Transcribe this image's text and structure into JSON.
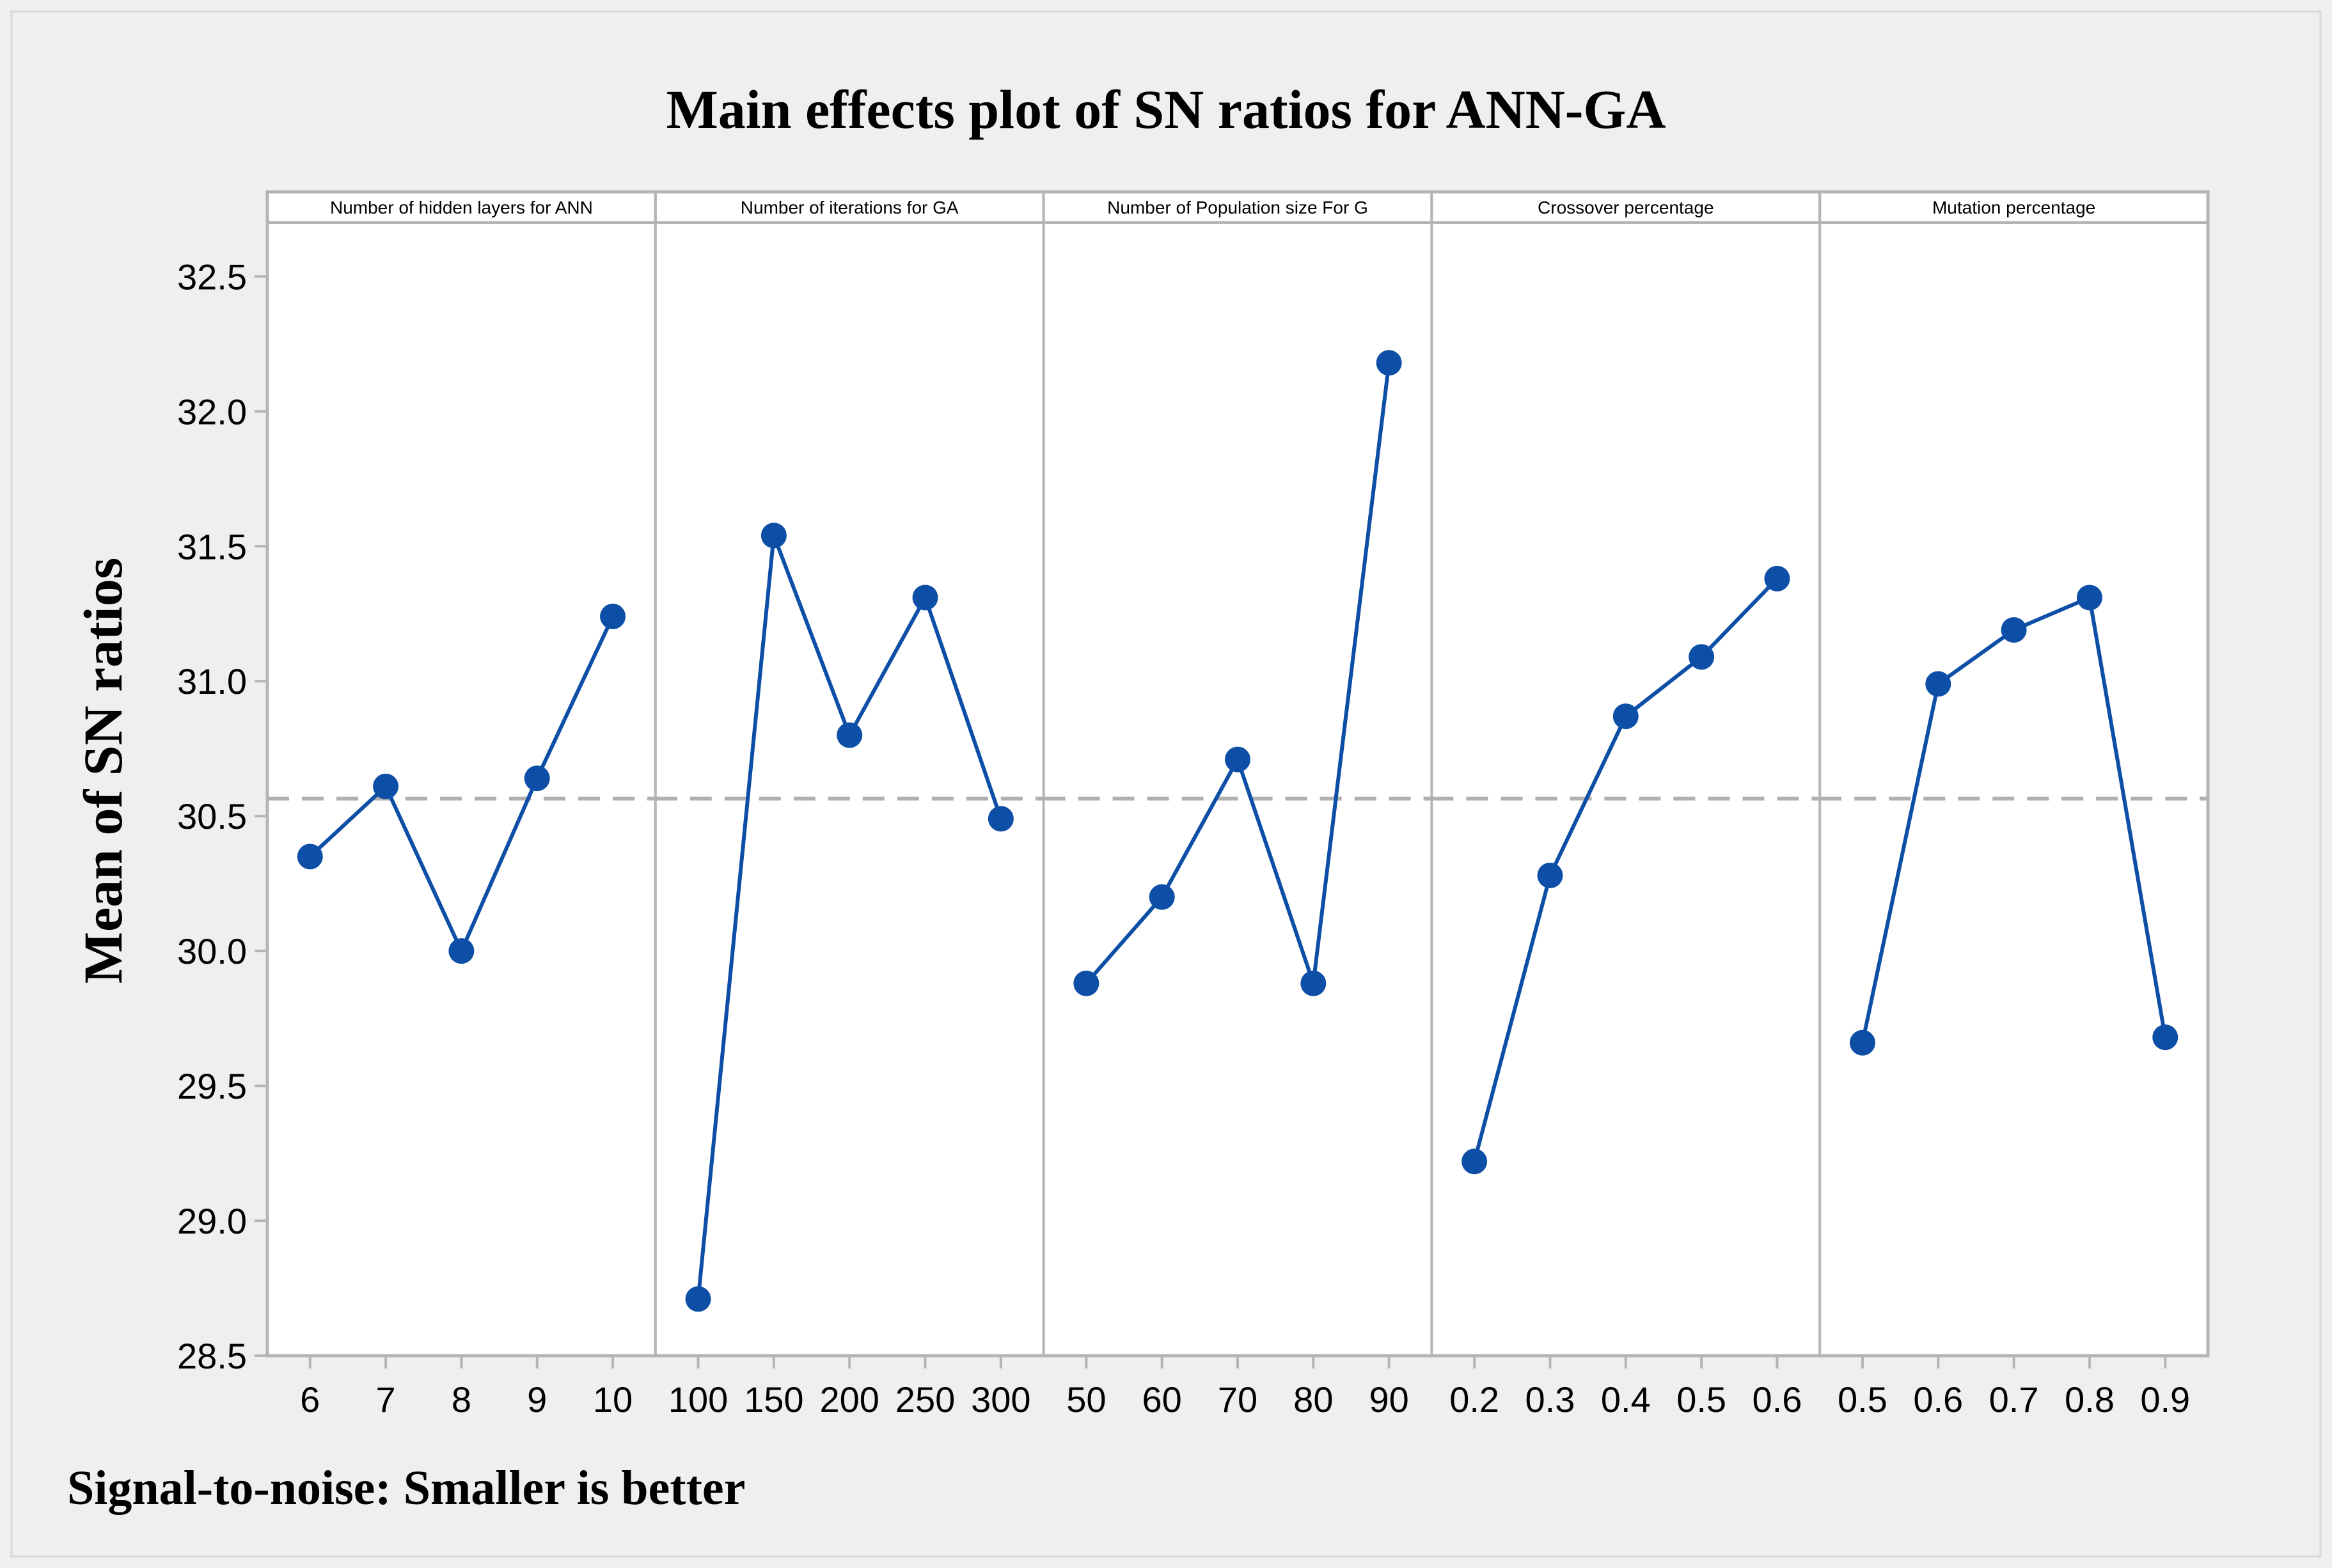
{
  "chart_data": {
    "type": "line",
    "title": "Main effects plot of SN ratios for ANN-GA",
    "ylabel": "Mean of SN ratios",
    "footnote": "Signal-to-noise: Smaller is better",
    "ylim": [
      28.5,
      32.7
    ],
    "yticks": [
      "28.5",
      "29.0",
      "29.5",
      "30.0",
      "30.5",
      "31.0",
      "31.5",
      "32.0",
      "32.5"
    ],
    "reference_line": 30.565,
    "colors": {
      "series": "#0d4fa6",
      "marker": "#0d4fa6",
      "reference": "#b0b0b0",
      "frame": "#b5b5b5",
      "outer_background": "#efefef"
    },
    "panels": [
      {
        "name": "Number of hidden layers for ANN",
        "categories": [
          "6",
          "7",
          "8",
          "9",
          "10"
        ],
        "values": [
          30.35,
          30.61,
          30.0,
          30.64,
          31.24
        ]
      },
      {
        "name": "Number of iterations for GA",
        "categories": [
          "100",
          "150",
          "200",
          "250",
          "300"
        ],
        "values": [
          28.71,
          31.54,
          30.8,
          31.31,
          30.49
        ]
      },
      {
        "name": "Number of Population size For G",
        "categories": [
          "50",
          "60",
          "70",
          "80",
          "90"
        ],
        "values": [
          29.88,
          30.2,
          30.71,
          29.88,
          32.18
        ]
      },
      {
        "name": "Crossover percentage",
        "categories": [
          "0.2",
          "0.3",
          "0.4",
          "0.5",
          "0.6"
        ],
        "values": [
          29.22,
          30.28,
          30.87,
          31.09,
          31.38
        ]
      },
      {
        "name": "Mutation percentage",
        "categories": [
          "0.5",
          "0.6",
          "0.7",
          "0.8",
          "0.9"
        ],
        "values": [
          29.66,
          30.99,
          31.19,
          31.31,
          29.68
        ]
      }
    ]
  }
}
